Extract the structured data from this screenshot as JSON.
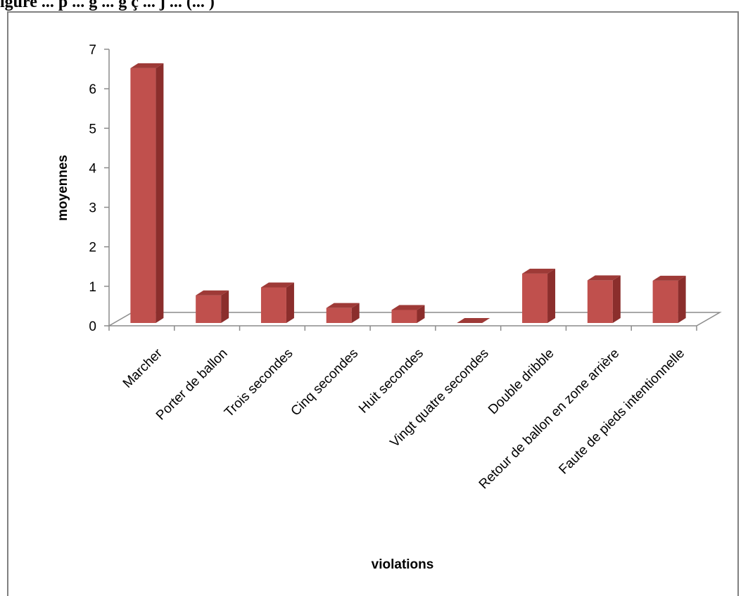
{
  "figure_title": "igure ... p ... g ... g ç ... j ... (... )",
  "chart_data": {
    "type": "bar",
    "categories": [
      "Marcher",
      "Porter de ballon",
      "Trois secondes",
      "Cinq secondes",
      "Huit secondes",
      "Vingt quatre secondes",
      "Double dribble",
      "Retour de ballon en zone arrière",
      "Faute de pieds intentionnelle"
    ],
    "values": [
      6.45,
      0.7,
      0.9,
      0.38,
      0.33,
      0.0,
      1.25,
      1.08,
      1.07
    ],
    "xlabel": "violations",
    "ylabel": "moyennes",
    "ylim": [
      0,
      7
    ],
    "yticks": [
      0,
      1,
      2,
      3,
      4,
      5,
      6,
      7
    ],
    "bar_color": "#c0504d",
    "bar_side_color": "#8b2e2c",
    "bar_top_color": "#9e3a37",
    "three_d": true,
    "grid": false,
    "legend": "none"
  }
}
